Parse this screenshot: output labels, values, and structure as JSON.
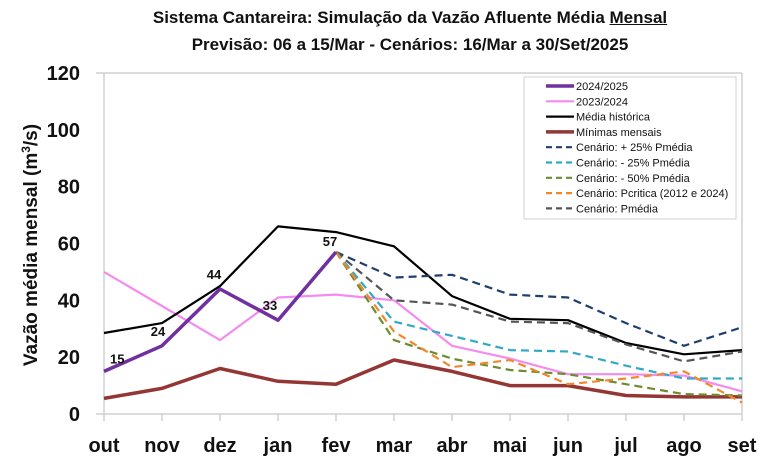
{
  "chart_data": {
    "type": "line",
    "title_line1_prefix": "Sistema Cantareira: Simulação da Vazão Afluente Média ",
    "title_line1_underlined": "Mensal",
    "title_line2": "Previsão: 06 a 15/Mar - Cenários: 16/Mar a 30/Set/2025",
    "ylabel": "Vazão média mensal (m³/s)",
    "ylabel_base": "Vazão média mensal (m",
    "ylabel_sup": "3",
    "ylabel_end": "/s)",
    "xlabel": "",
    "ylim": [
      0,
      120
    ],
    "yticks": [
      "0",
      "20",
      "40",
      "60",
      "80",
      "100",
      "120"
    ],
    "categories": [
      "out",
      "nov",
      "dez",
      "jan",
      "fev",
      "mar",
      "abr",
      "mai",
      "jun",
      "jul",
      "ago",
      "set"
    ],
    "grid": false,
    "legend_position": "top-right",
    "series": [
      {
        "name": "2024/2025",
        "color": "#7030A0",
        "dash": false,
        "width": 3.5,
        "values": [
          15,
          24,
          44,
          33,
          57,
          null,
          null,
          null,
          null,
          null,
          null,
          null
        ],
        "labels": [
          "15",
          "24",
          "44",
          "33",
          "57"
        ]
      },
      {
        "name": "2023/2024",
        "color": "#F48CF0",
        "dash": false,
        "width": 2.2,
        "values": [
          50,
          38,
          26,
          41,
          42,
          40,
          24,
          19.5,
          14,
          14,
          13.5,
          8
        ]
      },
      {
        "name": "Média histórica",
        "color": "#000000",
        "dash": false,
        "width": 2.2,
        "values": [
          28.5,
          32,
          45,
          66,
          64,
          59,
          41.5,
          33.5,
          33,
          25,
          21,
          22.5
        ]
      },
      {
        "name": "Mínimas mensais",
        "color": "#943634",
        "dash": false,
        "width": 3.5,
        "values": [
          5.5,
          9,
          16,
          11.5,
          10.5,
          19,
          15,
          10,
          10,
          6.5,
          6,
          6
        ]
      },
      {
        "name": "Cenário: + 25% Pmédia",
        "color": "#1F3F6E",
        "dash": true,
        "width": 2.2,
        "values": [
          null,
          null,
          null,
          null,
          57,
          48,
          49,
          42,
          41,
          32,
          24,
          30.5
        ]
      },
      {
        "name": "Cenário: - 25% Pmédia",
        "color": "#31A9C6",
        "dash": true,
        "width": 2.2,
        "values": [
          null,
          null,
          null,
          null,
          57,
          32.5,
          27.5,
          22.5,
          22,
          17,
          12.5,
          12.5
        ]
      },
      {
        "name": "Cenário: - 50% Pmédia",
        "color": "#6E8B2F",
        "dash": true,
        "width": 2.2,
        "values": [
          null,
          null,
          null,
          null,
          57,
          26,
          19.5,
          15.5,
          14,
          10.5,
          7,
          6.5
        ]
      },
      {
        "name": "Cenário: Pcritica (2012 e 2024)",
        "color": "#F0892C",
        "dash": true,
        "width": 2.2,
        "values": [
          null,
          null,
          null,
          null,
          57,
          29,
          16.5,
          19,
          10.5,
          12.5,
          15,
          4
        ]
      },
      {
        "name": "Cenário: Pmédia",
        "color": "#555555",
        "dash": true,
        "width": 2.2,
        "values": [
          null,
          null,
          null,
          null,
          57,
          40,
          38.5,
          32.5,
          32,
          24.5,
          18.5,
          22
        ]
      }
    ]
  }
}
